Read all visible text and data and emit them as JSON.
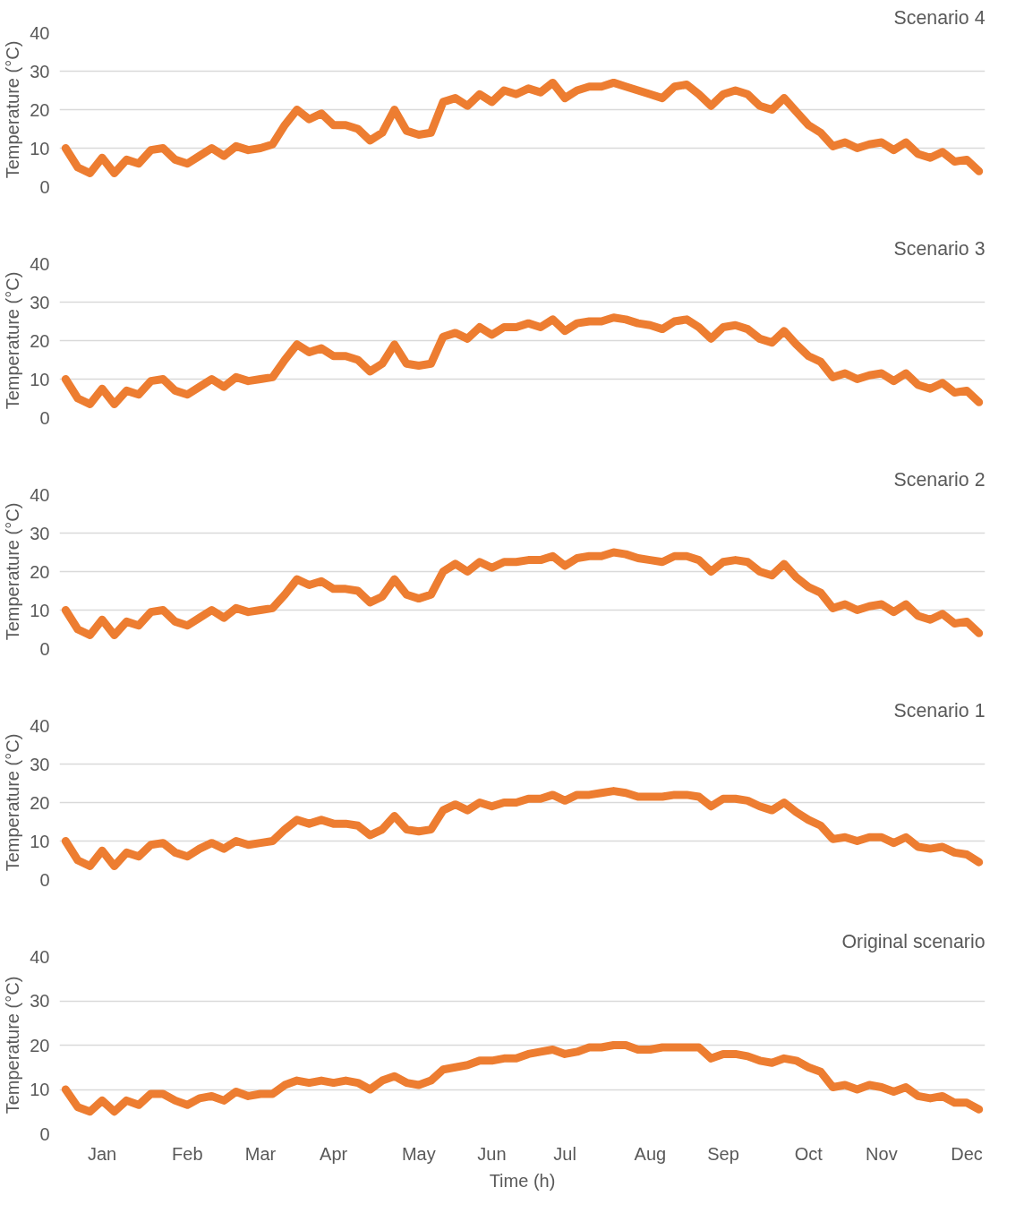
{
  "chart_data": [
    {
      "type": "line",
      "title": "Scenario 4",
      "ylabel": "Temperature (°C)",
      "ylim": [
        0,
        40
      ],
      "yticks": [
        0,
        10,
        20,
        30,
        40
      ],
      "grid": "y",
      "tick_labels": "y",
      "line_style": "solid",
      "categories": [
        null,
        null,
        null,
        null,
        null,
        null,
        null,
        null,
        null,
        null,
        null,
        null,
        null,
        null,
        null,
        null,
        null,
        null,
        null,
        null,
        null,
        null,
        null,
        null,
        null,
        null,
        null,
        null,
        null,
        null,
        null,
        null,
        null,
        null,
        null,
        null,
        null,
        null,
        null,
        null,
        null,
        null,
        null,
        null,
        null,
        null,
        null,
        null,
        null,
        null,
        null,
        null,
        null,
        null,
        null,
        null,
        null,
        null,
        null,
        null,
        null,
        null,
        null,
        null,
        null,
        null,
        null,
        null,
        null,
        null,
        null,
        null,
        null,
        null,
        null,
        null
      ],
      "series": [
        {
          "color": "#ed7d31",
          "values": [
            10,
            5,
            3.5,
            7.5,
            3.5,
            7,
            6,
            9.5,
            10,
            7,
            6,
            8,
            10,
            8,
            10.5,
            9.5,
            10,
            11,
            16,
            20,
            17.5,
            19,
            16,
            16,
            15,
            12,
            14,
            20,
            14.5,
            13.5,
            14,
            22,
            23,
            21,
            24,
            22,
            25,
            24,
            25.5,
            24.5,
            27,
            23,
            25,
            26,
            26,
            27,
            26,
            25,
            24,
            23,
            26,
            26.5,
            24,
            21,
            24,
            25,
            24,
            21,
            20,
            23,
            19.5,
            16,
            14,
            10.5,
            11.5,
            10,
            11,
            11.5,
            9.5,
            11.5,
            8.5,
            7.5,
            9,
            6.5,
            7,
            4
          ]
        }
      ]
    },
    {
      "type": "line",
      "title": "Scenario 3",
      "ylabel": "Temperature (°C)",
      "ylim": [
        0,
        40
      ],
      "yticks": [
        0,
        10,
        20,
        30,
        40
      ],
      "grid": "y",
      "tick_labels": "y",
      "line_style": "solid",
      "categories": [
        null,
        null,
        null,
        null,
        null,
        null,
        null,
        null,
        null,
        null,
        null,
        null,
        null,
        null,
        null,
        null,
        null,
        null,
        null,
        null,
        null,
        null,
        null,
        null,
        null,
        null,
        null,
        null,
        null,
        null,
        null,
        null,
        null,
        null,
        null,
        null,
        null,
        null,
        null,
        null,
        null,
        null,
        null,
        null,
        null,
        null,
        null,
        null,
        null,
        null,
        null,
        null,
        null,
        null,
        null,
        null,
        null,
        null,
        null,
        null,
        null,
        null,
        null,
        null,
        null,
        null,
        null,
        null,
        null,
        null,
        null,
        null,
        null,
        null,
        null,
        null
      ],
      "series": [
        {
          "color": "#ed7d31",
          "values": [
            10,
            5,
            3.5,
            7.5,
            3.5,
            7,
            6,
            9.5,
            10,
            7,
            6,
            8,
            10,
            8,
            10.5,
            9.5,
            10,
            10.5,
            15,
            19,
            17,
            18,
            16,
            16,
            15,
            12,
            14,
            19,
            14,
            13.5,
            14,
            21,
            22,
            20.5,
            23.5,
            21.5,
            23.5,
            23.5,
            24.5,
            23.5,
            25.5,
            22.5,
            24.5,
            25,
            25,
            26,
            25.5,
            24.5,
            24,
            23,
            25,
            25.5,
            23.5,
            20.5,
            23.5,
            24,
            23,
            20.5,
            19.5,
            22.5,
            19,
            16,
            14.5,
            10.5,
            11.5,
            10,
            11,
            11.5,
            9.5,
            11.5,
            8.5,
            7.5,
            9,
            6.5,
            7,
            4
          ]
        }
      ]
    },
    {
      "type": "line",
      "title": "Scenario 2",
      "ylabel": "Temperature (°C)",
      "ylim": [
        0,
        40
      ],
      "yticks": [
        0,
        10,
        20,
        30,
        40
      ],
      "grid": "y",
      "tick_labels": "y",
      "line_style": "solid",
      "categories": [
        null,
        null,
        null,
        null,
        null,
        null,
        null,
        null,
        null,
        null,
        null,
        null,
        null,
        null,
        null,
        null,
        null,
        null,
        null,
        null,
        null,
        null,
        null,
        null,
        null,
        null,
        null,
        null,
        null,
        null,
        null,
        null,
        null,
        null,
        null,
        null,
        null,
        null,
        null,
        null,
        null,
        null,
        null,
        null,
        null,
        null,
        null,
        null,
        null,
        null,
        null,
        null,
        null,
        null,
        null,
        null,
        null,
        null,
        null,
        null,
        null,
        null,
        null,
        null,
        null,
        null,
        null,
        null,
        null,
        null,
        null,
        null,
        null,
        null,
        null,
        null
      ],
      "series": [
        {
          "color": "#ed7d31",
          "values": [
            10,
            5,
            3.5,
            7.5,
            3.5,
            7,
            6,
            9.5,
            10,
            7,
            6,
            8,
            10,
            8,
            10.5,
            9.5,
            10,
            10.5,
            14,
            18,
            16.5,
            17.5,
            15.5,
            15.5,
            15,
            12,
            13.5,
            18,
            14,
            13,
            14,
            20,
            22,
            20,
            22.5,
            21,
            22.5,
            22.5,
            23,
            23,
            24,
            21.5,
            23.5,
            24,
            24,
            25,
            24.5,
            23.5,
            23,
            22.5,
            24,
            24,
            23,
            20,
            22.5,
            23,
            22.5,
            20,
            19,
            22,
            18.5,
            16,
            14.5,
            10.5,
            11.5,
            10,
            11,
            11.5,
            9.5,
            11.5,
            8.5,
            7.5,
            9,
            6.5,
            7,
            4
          ]
        }
      ]
    },
    {
      "type": "line",
      "title": "Scenario 1",
      "ylabel": "Temperature (°C)",
      "ylim": [
        0,
        40
      ],
      "yticks": [
        0,
        10,
        20,
        30,
        40
      ],
      "grid": "y",
      "tick_labels": "y",
      "line_style": "solid",
      "categories": [
        null,
        null,
        null,
        null,
        null,
        null,
        null,
        null,
        null,
        null,
        null,
        null,
        null,
        null,
        null,
        null,
        null,
        null,
        null,
        null,
        null,
        null,
        null,
        null,
        null,
        null,
        null,
        null,
        null,
        null,
        null,
        null,
        null,
        null,
        null,
        null,
        null,
        null,
        null,
        null,
        null,
        null,
        null,
        null,
        null,
        null,
        null,
        null,
        null,
        null,
        null,
        null,
        null,
        null,
        null,
        null,
        null,
        null,
        null,
        null,
        null,
        null,
        null,
        null,
        null,
        null,
        null,
        null,
        null,
        null,
        null,
        null,
        null,
        null,
        null,
        null
      ],
      "series": [
        {
          "color": "#ed7d31",
          "values": [
            10,
            5,
            3.5,
            7.5,
            3.5,
            7,
            6,
            9,
            9.5,
            7,
            6,
            8,
            9.5,
            8,
            10,
            9,
            9.5,
            10,
            13,
            15.5,
            14.5,
            15.5,
            14.5,
            14.5,
            14,
            11.5,
            13,
            16.5,
            13,
            12.5,
            13,
            18,
            19.5,
            18,
            20,
            19,
            20,
            20,
            21,
            21,
            22,
            20.5,
            22,
            22,
            22.5,
            23,
            22.5,
            21.5,
            21.5,
            21.5,
            22,
            22,
            21.5,
            19,
            21,
            21,
            20.5,
            19,
            18,
            20,
            17.5,
            15.5,
            14,
            10.5,
            11,
            10,
            11,
            11,
            9.5,
            11,
            8.5,
            8,
            8.5,
            7,
            6.5,
            4.5
          ]
        }
      ]
    },
    {
      "type": "line",
      "title": "Original scenario",
      "ylabel": "Temperature (°C)",
      "xlabel": "Time (h)",
      "ylim": [
        0,
        40
      ],
      "yticks": [
        0,
        10,
        20,
        30,
        40
      ],
      "grid": "y",
      "line_style": "solid",
      "categories": [
        null,
        null,
        null,
        "Jan",
        null,
        null,
        null,
        null,
        null,
        null,
        "Feb",
        null,
        null,
        null,
        null,
        null,
        "Mar",
        null,
        null,
        null,
        null,
        null,
        "Apr",
        null,
        null,
        null,
        null,
        null,
        null,
        "May",
        null,
        null,
        null,
        null,
        null,
        "Jun",
        null,
        null,
        null,
        null,
        null,
        "Jul",
        null,
        null,
        null,
        null,
        null,
        null,
        "Aug",
        null,
        null,
        null,
        null,
        null,
        "Sep",
        null,
        null,
        null,
        null,
        null,
        null,
        "Oct",
        null,
        null,
        null,
        null,
        null,
        "Nov",
        null,
        null,
        null,
        null,
        null,
        null,
        "Dec",
        null
      ],
      "series": [
        {
          "color": "#ed7d31",
          "values": [
            10,
            6,
            5,
            7.5,
            5,
            7.5,
            6.5,
            9,
            9,
            7.5,
            6.5,
            8,
            8.5,
            7.5,
            9.5,
            8.5,
            9,
            9,
            11,
            12,
            11.5,
            12,
            11.5,
            12,
            11.5,
            10,
            12,
            13,
            11.5,
            11,
            12,
            14.5,
            15,
            15.5,
            16.5,
            16.5,
            17,
            17,
            18,
            18.5,
            19,
            18,
            18.5,
            19.5,
            19.5,
            20,
            20,
            19,
            19,
            19.5,
            19.5,
            19.5,
            19.5,
            17,
            18,
            18,
            17.5,
            16.5,
            16,
            17,
            16.5,
            15,
            14,
            10.5,
            11,
            10,
            11,
            10.5,
            9.5,
            10.5,
            8.5,
            8,
            8.5,
            7,
            7,
            5.5
          ]
        }
      ]
    }
  ]
}
